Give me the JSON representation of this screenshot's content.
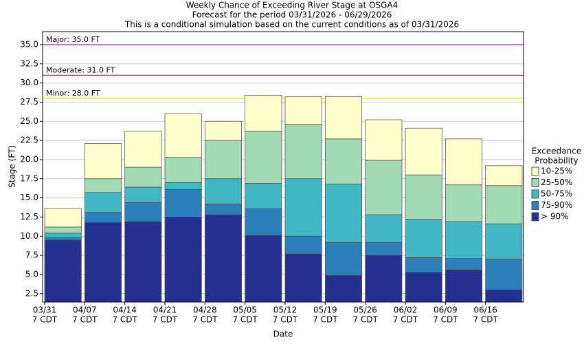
{
  "chart_data": {
    "type": "bar",
    "stacked_levels": true,
    "title": [
      "Weekly Chance of Exceeding River Stage at OSGA4",
      "Forecast for the period 03/31/2026 - 06/29/2026",
      "This is a conditional simulation based on the current conditions as of 03/31/2026"
    ],
    "x_label": "Date",
    "y_label": "Stage (FT)",
    "categories": [
      "03/31",
      "04/07",
      "04/14",
      "04/21",
      "04/28",
      "05/05",
      "05/12",
      "05/19",
      "05/26",
      "06/02",
      "06/09",
      "06/16"
    ],
    "tick_suffix": "7 CDT",
    "legend_title": [
      "Exceedance",
      "Probability"
    ],
    "legend": "right",
    "series": [
      {
        "name": "> 90%",
        "color": "#252f8f",
        "values": [
          9.5,
          11.8,
          11.9,
          12.5,
          12.8,
          10.1,
          7.7,
          4.9,
          7.5,
          5.3,
          5.6,
          3.0
        ]
      },
      {
        "name": "75-90%",
        "color": "#2c7fb8",
        "values": [
          9.8,
          13.1,
          14.4,
          16.1,
          14.2,
          13.6,
          10.0,
          9.2,
          9.2,
          7.2,
          7.1,
          7.0
        ]
      },
      {
        "name": "50-75%",
        "color": "#41b6c4",
        "values": [
          10.4,
          15.7,
          16.4,
          17.0,
          17.5,
          16.9,
          17.5,
          16.8,
          12.8,
          12.2,
          11.9,
          11.6
        ]
      },
      {
        "name": "25-50%",
        "color": "#a1dab4",
        "values": [
          11.2,
          17.5,
          19.0,
          20.3,
          22.5,
          23.7,
          24.6,
          22.7,
          19.9,
          18.0,
          16.7,
          16.6
        ]
      },
      {
        "name": "10-25%",
        "color": "#ffffcc",
        "values": [
          13.6,
          22.1,
          23.7,
          26.0,
          25.0,
          28.4,
          28.2,
          28.2,
          25.2,
          24.1,
          22.7,
          19.2
        ]
      }
    ],
    "thresholds": [
      {
        "label": "Major: 35.0 FT",
        "value": 35.0,
        "color": "#c040c0"
      },
      {
        "label": "Moderate: 31.0 FT",
        "value": 31.0,
        "color": "#d03030"
      },
      {
        "label": "Minor: 28.0 FT",
        "value": 28.0,
        "color": "#e8e800"
      }
    ],
    "ylim": [
      1.4,
      36.7
    ],
    "yticks": [
      2.5,
      {
        "value": 5,
        "label": "5.0"
      },
      7.5,
      {
        "value": 10,
        "label": "10.0"
      },
      12.5,
      {
        "value": 15,
        "label": "15.0"
      },
      17.5,
      {
        "value": 20,
        "label": "20.0"
      },
      22.5,
      {
        "value": 25,
        "label": "25.0"
      },
      27.5,
      {
        "value": 30,
        "label": "30.0"
      },
      32.5,
      {
        "value": 35,
        "label": "35.0"
      }
    ]
  }
}
